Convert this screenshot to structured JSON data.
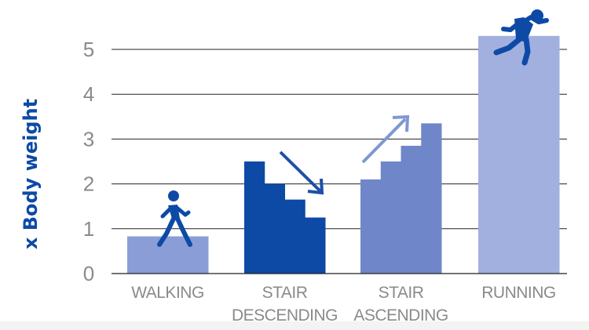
{
  "colors": {
    "walking": "#8a9dd6",
    "stair_descending": "#0d4aa6",
    "stair_ascending": "#6f87c9",
    "running": "#a1b0de",
    "accent": "#0d4aa6",
    "grid": "#222222",
    "tick": "#8a8a8a",
    "arrow_desc": "#1e4fa8",
    "arrow_asc": "#6f87c9"
  },
  "chart_data": {
    "type": "bar",
    "ylabel": "x Body weight",
    "xlabel": "",
    "ylim": [
      0,
      5.3
    ],
    "yticks": [
      0,
      1,
      2,
      3,
      4,
      5
    ],
    "grid": true,
    "categories": [
      {
        "key": "walking",
        "label_lines": [
          "WALKING"
        ],
        "steps": [
          0.83
        ],
        "icon": "walking-person-icon"
      },
      {
        "key": "stair_descending",
        "label_lines": [
          "STAIR",
          "DESCENDING"
        ],
        "steps": [
          2.5,
          2.0,
          1.65,
          1.25
        ],
        "icon": "down-right-arrow-icon"
      },
      {
        "key": "stair_ascending",
        "label_lines": [
          "STAIR",
          "ASCENDING"
        ],
        "steps": [
          2.1,
          2.5,
          2.85,
          3.35
        ],
        "icon": "up-right-arrow-icon"
      },
      {
        "key": "running",
        "label_lines": [
          "RUNNING"
        ],
        "steps": [
          5.3
        ],
        "icon": "running-person-icon"
      }
    ]
  }
}
